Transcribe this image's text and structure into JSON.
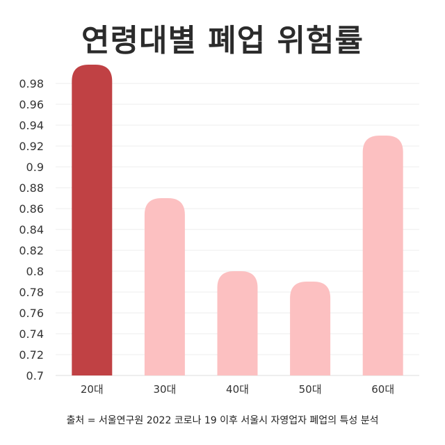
{
  "chart_data": {
    "type": "bar",
    "title": "연령대별 폐업 위험률",
    "categories": [
      "20대",
      "30대",
      "40대",
      "50대",
      "60대"
    ],
    "values": [
      0.998,
      0.87,
      0.8,
      0.79,
      0.93
    ],
    "ylim": [
      0.7,
      1.0
    ],
    "yticks": [
      "0.7",
      "0.72",
      "0.74",
      "0.76",
      "0.78",
      "0.8",
      "0.82",
      "0.84",
      "0.86",
      "0.88",
      "0.9",
      "0.92",
      "0.94",
      "0.96",
      "0.98"
    ],
    "grid": true,
    "legend": "none",
    "highlight_index": 0,
    "colors": {
      "highlight": "#c04144",
      "bar": "#fcc0c1",
      "grid": "#eeeeee",
      "axis": "#dddddd"
    },
    "source": "출처 = 서울연구원 2022 코로나 19 이후 서울시 자영업자 폐업의 특성 분석"
  }
}
